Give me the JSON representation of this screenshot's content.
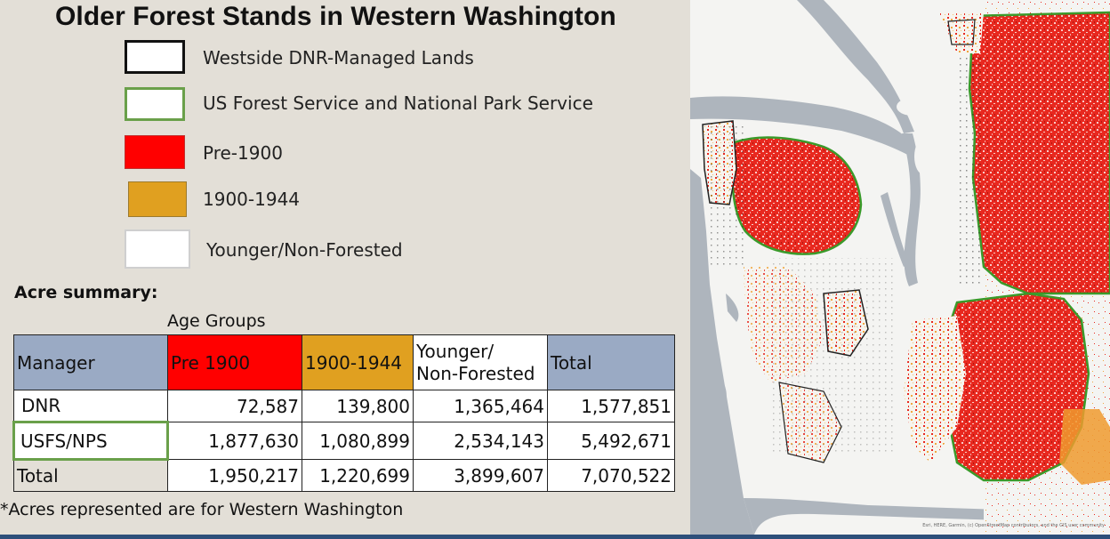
{
  "title": "Older Forest Stands in Western Washington",
  "legend": [
    {
      "label": "Westside DNR-Managed Lands",
      "fill": "#ffffff",
      "border": "#111111",
      "icon": "dnr-outline-swatch"
    },
    {
      "label": "US Forest Service and National Park Service",
      "fill": "#ffffff",
      "border": "#6aa04a",
      "icon": "usfs-nps-outline-swatch"
    },
    {
      "label": "Pre-1900",
      "fill": "#ff0000",
      "border": "#ff0000",
      "icon": "pre-1900-swatch"
    },
    {
      "label": "1900-1944",
      "fill": "#e0a020",
      "border": "#e0a020",
      "icon": "1900-1944-swatch"
    },
    {
      "label": "Younger/Non-Forested",
      "fill": "#ffffff",
      "border": "#cfcfcf",
      "icon": "younger-swatch"
    }
  ],
  "acre_summary": {
    "heading": "Acre summary:",
    "age_groups_label": "Age Groups",
    "columns": {
      "manager": "Manager",
      "pre1900": "Pre 1900",
      "mid": "1900-1944",
      "younger_line1": "Younger/",
      "younger_line2": "Non-Forested",
      "total": "Total"
    },
    "rows": [
      {
        "manager": "DNR",
        "pre1900": "72,587",
        "mid": "139,800",
        "younger": "1,365,464",
        "total": "1,577,851"
      },
      {
        "manager": "USFS/NPS",
        "pre1900": "1,877,630",
        "mid": "1,080,899",
        "younger": "2,534,143",
        "total": "5,492,671"
      },
      {
        "manager": "Total",
        "pre1900": "1,950,217",
        "mid": "1,220,699",
        "younger": "3,899,607",
        "total": "7,070,522"
      }
    ]
  },
  "footnote": "*Acres represented are for Western Washington",
  "map": {
    "attribution": "Esri, HERE, Garmin, (c) OpenStreetMap contributors, and the GIS user community"
  },
  "colors": {
    "background": "#e3dfd7",
    "header_gray": "#9aaac4",
    "pre1900": "#ff0000",
    "mid": "#e0a020",
    "usfs_border": "#6aa04a",
    "water": "#aeb5bd",
    "land": "#f4f4f2"
  }
}
